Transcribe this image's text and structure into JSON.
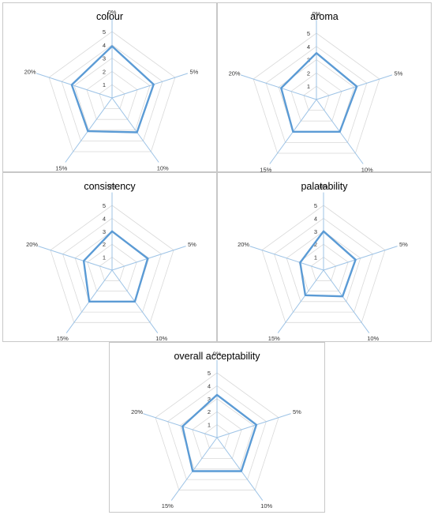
{
  "chart_data": [
    {
      "type": "radar",
      "title": "colour",
      "categories": [
        "0%",
        "5%",
        "10%",
        "15%",
        "20%"
      ],
      "ticks": [
        "1",
        "2",
        "3",
        "4",
        "5"
      ],
      "rmax": 5,
      "series": [
        {
          "values": [
            3.9,
            3.3,
            3.2,
            3.1,
            3.2
          ],
          "color": "#5b9bd5"
        }
      ]
    },
    {
      "type": "radar",
      "title": "aroma",
      "categories": [
        "0%",
        "5%",
        "10%",
        "15%",
        "20%"
      ],
      "ticks": [
        "1",
        "2",
        "3",
        "4",
        "5"
      ],
      "rmax": 5,
      "series": [
        {
          "values": [
            3.5,
            3.2,
            3.0,
            3.0,
            2.8
          ],
          "color": "#5b9bd5"
        }
      ]
    },
    {
      "type": "radar",
      "title": "consistency",
      "categories": [
        "0%",
        "5%",
        "10%",
        "15%",
        "20%"
      ],
      "ticks": [
        "1",
        "2",
        "3",
        "4",
        "5"
      ],
      "rmax": 5,
      "series": [
        {
          "values": [
            3.0,
            2.9,
            3.0,
            3.0,
            2.3
          ],
          "color": "#5b9bd5"
        }
      ]
    },
    {
      "type": "radar",
      "title": "palatability",
      "categories": [
        "0%",
        "5%",
        "10%",
        "15%",
        "20%"
      ],
      "ticks": [
        "1",
        "2",
        "3",
        "4",
        "5"
      ],
      "rmax": 5,
      "series": [
        {
          "values": [
            3.0,
            2.6,
            2.5,
            2.4,
            1.9
          ],
          "color": "#5b9bd5"
        }
      ]
    },
    {
      "type": "radar",
      "title": "overall acceptability",
      "categories": [
        "0%",
        "5%",
        "10%",
        "15%",
        "20%"
      ],
      "ticks": [
        "1",
        "2",
        "3",
        "4",
        "5"
      ],
      "rmax": 5,
      "series": [
        {
          "values": [
            3.3,
            3.2,
            3.2,
            3.2,
            2.8
          ],
          "color": "#5b9bd5"
        }
      ]
    }
  ]
}
